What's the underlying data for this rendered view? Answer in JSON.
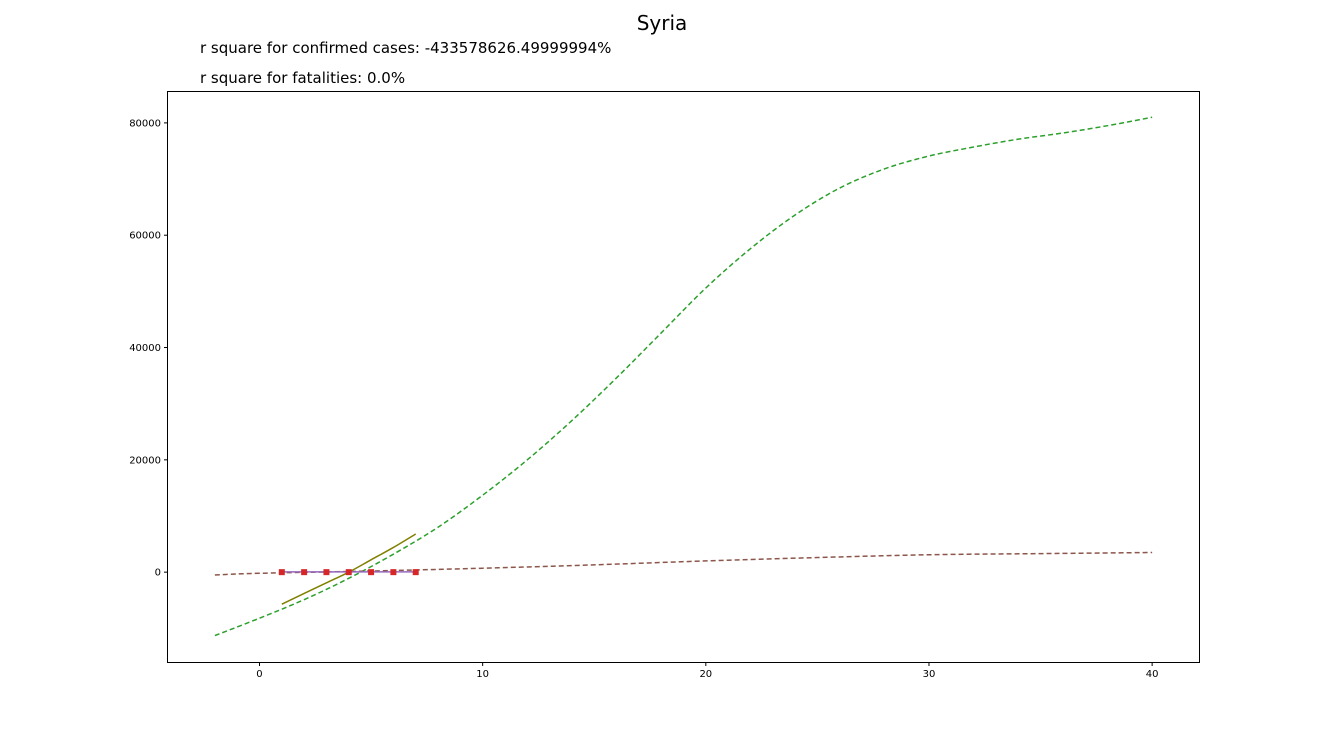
{
  "chart_data": {
    "type": "line",
    "title": "Syria",
    "annotations": [
      "r square for confirmed cases: -433578626.49999994%",
      "r square for fatalities: 0.0%"
    ],
    "xlabel": "",
    "ylabel": "",
    "xlim": [
      -4.1,
      42.1
    ],
    "ylim": [
      -16000,
      85500
    ],
    "xticks": [
      0,
      10,
      20,
      30,
      40
    ],
    "yticks": [
      0,
      20000,
      40000,
      60000,
      80000
    ],
    "grid": false,
    "series": [
      {
        "color": "#2ca02c",
        "style": "dashed",
        "x": [
          -2,
          0,
          2,
          4,
          6,
          8,
          10,
          12,
          14,
          16,
          18,
          20,
          22,
          24,
          26,
          28,
          30,
          32,
          34,
          36,
          38,
          40
        ],
        "y": [
          -11300,
          -8200,
          -4900,
          -1100,
          3200,
          8000,
          13700,
          20000,
          27000,
          34600,
          42600,
          50600,
          57600,
          63600,
          68400,
          71800,
          74100,
          75700,
          77100,
          78200,
          79500,
          81000
        ]
      },
      {
        "color": "#8c564b",
        "style": "dashed",
        "x": [
          -2,
          0,
          5,
          10,
          15,
          20,
          25,
          30,
          35,
          40
        ],
        "y": [
          -500,
          -200,
          200,
          700,
          1300,
          2000,
          2600,
          3100,
          3300,
          3500
        ]
      },
      {
        "color": "#808000",
        "style": "solid",
        "x": [
          1,
          2,
          3,
          4,
          5,
          6,
          7
        ],
        "y": [
          -5700,
          -3800,
          -1900,
          0,
          2200,
          4400,
          6800
        ]
      },
      {
        "color": "#9467bd",
        "style": "solid",
        "x": [
          1,
          7
        ],
        "y": [
          50,
          50
        ]
      },
      {
        "color": "#d62728",
        "style": "markers",
        "x": [
          1,
          2,
          3,
          4,
          5,
          6,
          7
        ],
        "y": [
          0,
          0,
          0,
          0,
          0,
          0,
          0
        ]
      }
    ]
  }
}
